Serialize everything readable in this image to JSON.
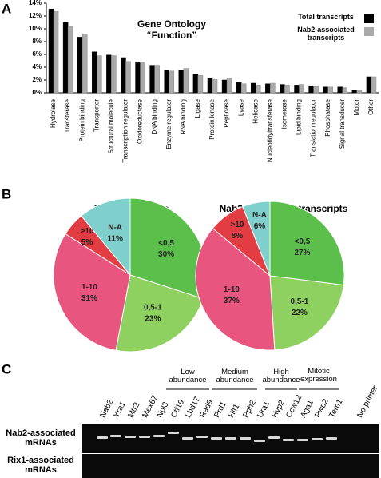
{
  "panel_labels": [
    "A",
    "B",
    "C"
  ],
  "chart_data": [
    {
      "type": "bar",
      "title": "Gene Ontology",
      "subtitle": "“Function”",
      "categories": [
        "Hydrolase",
        "Transferase",
        "Protein binding",
        "Transporter",
        "Structural molecule",
        "Transcription regulator",
        "Oxidoreductase",
        "DNA binding",
        "Enzyme regulator",
        "RNA binding",
        "Ligase",
        "Protein kinase",
        "Peptidase",
        "Lyase",
        "Helicase",
        "Nucleotidyltransferase",
        "Isomerase",
        "Lipid binding",
        "Translation regulator",
        "Phosphatase",
        "Signal transducer",
        "Motor",
        "Other"
      ],
      "series": [
        {
          "name": "Total transcripts",
          "color": "#000000",
          "values": [
            13.1,
            11.0,
            8.7,
            6.4,
            5.9,
            5.5,
            4.7,
            4.3,
            3.5,
            3.5,
            2.9,
            2.3,
            2.0,
            1.6,
            1.5,
            1.4,
            1.3,
            1.2,
            1.1,
            0.9,
            0.9,
            0.4,
            2.5
          ]
        },
        {
          "name": "Nab2-associated transcripts",
          "color": "#aaaaaa",
          "values": [
            12.7,
            10.4,
            9.2,
            5.8,
            5.8,
            4.9,
            4.8,
            4.3,
            3.4,
            3.8,
            2.7,
            2.1,
            2.3,
            1.4,
            1.2,
            1.5,
            1.2,
            1.3,
            1.0,
            0.9,
            0.8,
            0.4,
            2.5
          ]
        }
      ],
      "ylim": [
        0,
        14
      ],
      "yticks": [
        {
          "value": 0,
          "label": "0%"
        },
        {
          "value": 2,
          "label": "2%"
        },
        {
          "value": 4,
          "label": "4%"
        },
        {
          "value": 6,
          "label": "6%"
        },
        {
          "value": 8,
          "label": "8%"
        },
        {
          "value": 10,
          "label": "10%"
        },
        {
          "value": 12,
          "label": "12%"
        },
        {
          "value": 14,
          "label": "14%"
        }
      ],
      "grid": false,
      "legend": "upper right"
    },
    {
      "type": "pie",
      "title": "Total transcripts",
      "categories": [
        "<0,5",
        "0,5-1",
        "1-10",
        ">10",
        "N-A"
      ],
      "values": [
        30,
        23,
        31,
        5,
        11
      ],
      "value_labels": [
        "30%",
        "23%",
        "31%",
        "5%",
        "11%"
      ],
      "colors": [
        "#5cbf4c",
        "#8fd160",
        "#e8557f",
        "#e23d42",
        "#7fcfcc"
      ]
    },
    {
      "type": "pie",
      "title": "Nab2-associated transcripts",
      "categories": [
        "<0,5",
        "0,5-1",
        "1-10",
        ">10",
        "N-A"
      ],
      "values": [
        27,
        22,
        37,
        8,
        6
      ],
      "value_labels": [
        "27%",
        "22%",
        "37%",
        "8%",
        "6%"
      ],
      "colors": [
        "#5cbf4c",
        "#8fd160",
        "#e8557f",
        "#e23d42",
        "#7fcfcc"
      ]
    }
  ],
  "gel": {
    "groups": [
      "Low abundance",
      "Medium abundance",
      "High abundance",
      "Mitotic expression"
    ],
    "lanes": [
      "Nab2",
      "Yra1",
      "Mtr2",
      "Mex67",
      "Npl3",
      "Ctf19",
      "Lbd17",
      "Rad9",
      "Prd1",
      "Hlf1",
      "Pph2",
      "Ura1",
      "Hyp2",
      "Ccw12",
      "Aga1",
      "Pwp2",
      "Tem1",
      "No primer"
    ],
    "rows": [
      "Nab2-associated mRNAs",
      "Rix1-associated mRNAs"
    ]
  }
}
